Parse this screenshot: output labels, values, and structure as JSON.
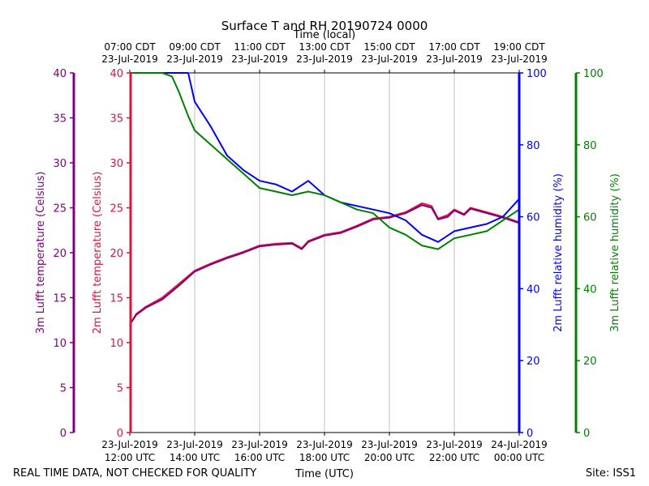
{
  "chart_data": {
    "type": "line",
    "title": "Surface T and RH 20190724 0000",
    "xlabel_bottom": "Time (UTC)",
    "xlabel_top": "Time (local)",
    "x_unit": "hours UTC (23-Jul-2019)",
    "xlim": [
      12,
      24
    ],
    "x_ticks_bottom": [
      {
        "x": 12,
        "line1": "23-Jul-2019",
        "line2": "12:00 UTC"
      },
      {
        "x": 14,
        "line1": "23-Jul-2019",
        "line2": "14:00 UTC"
      },
      {
        "x": 16,
        "line1": "23-Jul-2019",
        "line2": "16:00 UTC"
      },
      {
        "x": 18,
        "line1": "23-Jul-2019",
        "line2": "18:00 UTC"
      },
      {
        "x": 20,
        "line1": "23-Jul-2019",
        "line2": "20:00 UTC"
      },
      {
        "x": 22,
        "line1": "23-Jul-2019",
        "line2": "22:00 UTC"
      },
      {
        "x": 24,
        "line1": "24-Jul-2019",
        "line2": "00:00 UTC"
      }
    ],
    "x_ticks_top": [
      {
        "x": 12,
        "line1": "07:00 CDT",
        "line2": "23-Jul-2019"
      },
      {
        "x": 14,
        "line1": "09:00 CDT",
        "line2": "23-Jul-2019"
      },
      {
        "x": 16,
        "line1": "11:00 CDT",
        "line2": "23-Jul-2019"
      },
      {
        "x": 18,
        "line1": "13:00 CDT",
        "line2": "23-Jul-2019"
      },
      {
        "x": 20,
        "line1": "15:00 CDT",
        "line2": "23-Jul-2019"
      },
      {
        "x": 22,
        "line1": "17:00 CDT",
        "line2": "23-Jul-2019"
      },
      {
        "x": 24,
        "line1": "19:00 CDT",
        "line2": "23-Jul-2019"
      }
    ],
    "axes": {
      "t3m": {
        "label": "3m Lufft temperature (Celsius)",
        "color": "#800080",
        "lim": [
          0,
          40
        ],
        "ticks": [
          0,
          5,
          10,
          15,
          20,
          25,
          30,
          35,
          40
        ]
      },
      "t2m": {
        "label": "2m Lufft temperature (Celsius)",
        "color": "#dc143c",
        "lim": [
          0,
          40
        ],
        "ticks": [
          0,
          5,
          10,
          15,
          20,
          25,
          30,
          35,
          40
        ]
      },
      "rh2m": {
        "label": "2m Lufft relative humidity (%)",
        "color": "#0000ff",
        "lim": [
          0,
          100
        ],
        "ticks": [
          0,
          20,
          40,
          60,
          80,
          100
        ]
      },
      "rh3m": {
        "label": "3m Lufft relative humidity (%)",
        "color": "#008000",
        "lim": [
          0,
          100
        ],
        "ticks": [
          0,
          20,
          40,
          60,
          80,
          100
        ]
      }
    },
    "grid": "vertical",
    "series": [
      {
        "name": "2m Lufft temperature",
        "axis": "t2m",
        "color": "#dc143c",
        "x": [
          12,
          12.2,
          12.5,
          13,
          13.5,
          14,
          14.5,
          15,
          15.5,
          16,
          16.5,
          17,
          17.3,
          17.5,
          18,
          18.5,
          19,
          19.5,
          20,
          20.5,
          21,
          21.3,
          21.5,
          21.8,
          22,
          22.3,
          22.5,
          23,
          23.5,
          24
        ],
        "y": [
          12,
          13.2,
          14,
          15,
          16.5,
          18,
          18.8,
          19.5,
          20.1,
          20.8,
          21,
          21.1,
          20.5,
          21.3,
          22,
          22.3,
          23,
          23.8,
          24,
          24.5,
          25.5,
          25.2,
          23.8,
          24.2,
          24.8,
          24.3,
          25,
          24.5,
          24,
          23.4
        ]
      },
      {
        "name": "3m Lufft temperature",
        "axis": "t3m",
        "color": "#800080",
        "x": [
          12,
          12.2,
          12.5,
          13,
          13.5,
          14,
          14.5,
          15,
          15.5,
          16,
          16.5,
          17,
          17.3,
          17.5,
          18,
          18.5,
          19,
          19.5,
          20,
          20.5,
          21,
          21.3,
          21.5,
          21.8,
          22,
          22.3,
          22.5,
          23,
          23.5,
          24
        ],
        "y": [
          12,
          13.1,
          13.9,
          14.8,
          16.3,
          17.9,
          18.7,
          19.4,
          20,
          20.7,
          20.9,
          21,
          20.4,
          21.2,
          21.9,
          22.2,
          22.9,
          23.7,
          23.9,
          24.4,
          25.3,
          25,
          23.7,
          24,
          24.7,
          24.2,
          24.9,
          24.4,
          23.9,
          23.3
        ]
      },
      {
        "name": "2m Lufft relative humidity",
        "axis": "rh2m",
        "color": "#0000ff",
        "x": [
          12,
          13.5,
          13.8,
          14,
          14.5,
          15,
          15.5,
          16,
          16.5,
          17,
          17.5,
          18,
          18.5,
          19,
          19.5,
          20,
          20.5,
          21,
          21.5,
          22,
          22.5,
          23,
          23.5,
          24
        ],
        "y": [
          100,
          100,
          100,
          92,
          85,
          77,
          73,
          70,
          69,
          67,
          70,
          66,
          64,
          63,
          62,
          61,
          59,
          55,
          53,
          56,
          57,
          58,
          60,
          65
        ]
      },
      {
        "name": "3m Lufft relative humidity",
        "axis": "rh3m",
        "color": "#008000",
        "x": [
          12,
          13,
          13.3,
          13.5,
          13.8,
          14,
          14.5,
          15,
          15.5,
          16,
          16.5,
          17,
          17.5,
          18,
          18.5,
          19,
          19.5,
          20,
          20.5,
          21,
          21.5,
          22,
          22.5,
          23,
          23.5,
          24
        ],
        "y": [
          100,
          100,
          99,
          95,
          88,
          84,
          80,
          76,
          72,
          68,
          67,
          66,
          67,
          66,
          64,
          62,
          61,
          57,
          55,
          52,
          51,
          54,
          55,
          56,
          59,
          62
        ]
      }
    ]
  },
  "footer": {
    "left": "REAL TIME DATA, NOT CHECKED FOR QUALITY",
    "center": "Time (UTC)",
    "right": "Site: ISS1"
  }
}
